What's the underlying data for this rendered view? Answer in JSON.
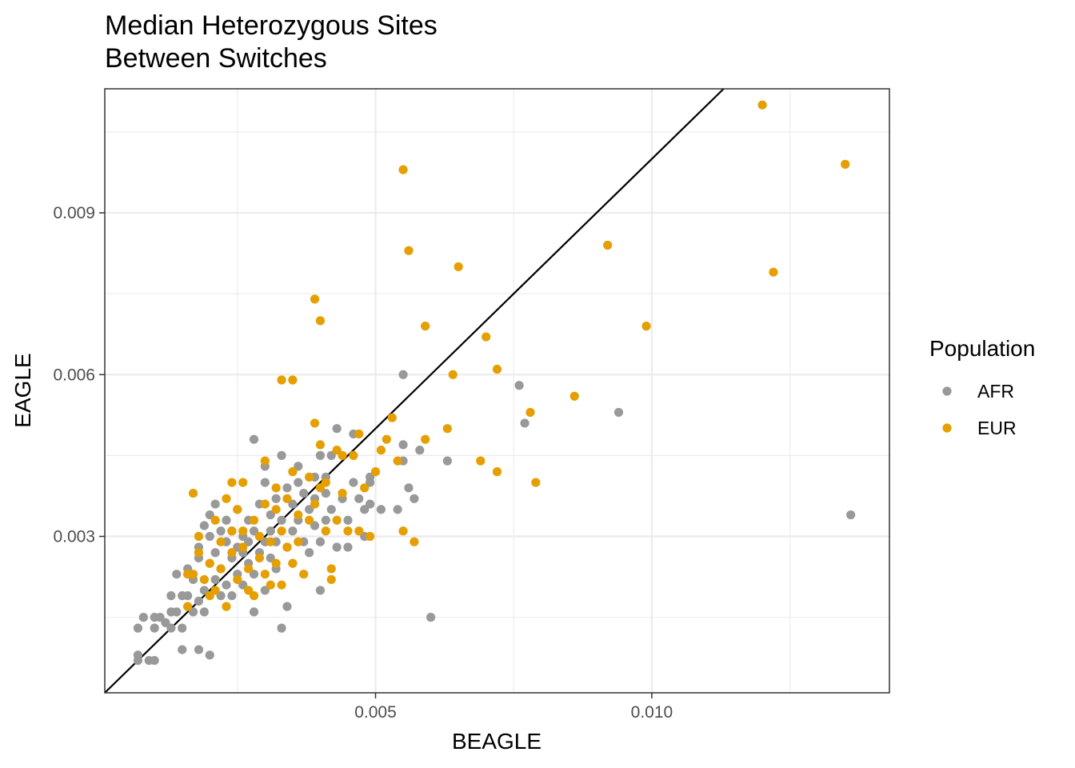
{
  "chart_data": {
    "type": "scatter",
    "title": "Median Heterozygous Sites",
    "subtitle": "Between Switches",
    "xlabel": "BEAGLE",
    "ylabel": "EAGLE",
    "xlim": [
      0.0001,
      0.0143
    ],
    "ylim": [
      0.0001,
      0.0113
    ],
    "x_ticks": [
      0.005,
      0.01
    ],
    "x_tick_labels": [
      "0.005",
      "0.010"
    ],
    "x_minor_ticks": [
      0.0025,
      0.0075,
      0.0125
    ],
    "y_ticks": [
      0.003,
      0.006,
      0.009
    ],
    "y_tick_labels": [
      "0.003",
      "0.006",
      "0.009"
    ],
    "y_minor_ticks": [
      0.0015,
      0.0045,
      0.0075,
      0.0105
    ],
    "grid": true,
    "reference_line": {
      "type": "identity",
      "slope": 1,
      "intercept": 0,
      "color": "#000000"
    },
    "legend": {
      "title": "Population",
      "placement": "right",
      "entries": [
        {
          "label": "AFR",
          "color": "#999999"
        },
        {
          "label": "EUR",
          "color": "#E69F00"
        }
      ]
    },
    "series": [
      {
        "name": "AFR",
        "color": "#999999",
        "points": [
          [
            0.0007,
            0.0007
          ],
          [
            0.0007,
            0.0008
          ],
          [
            0.0007,
            0.0013
          ],
          [
            0.0008,
            0.0015
          ],
          [
            0.0009,
            0.0007
          ],
          [
            0.001,
            0.0007
          ],
          [
            0.001,
            0.0013
          ],
          [
            0.001,
            0.0015
          ],
          [
            0.0011,
            0.0015
          ],
          [
            0.0012,
            0.0014
          ],
          [
            0.0013,
            0.0016
          ],
          [
            0.0013,
            0.0019
          ],
          [
            0.0013,
            0.0013
          ],
          [
            0.0014,
            0.0016
          ],
          [
            0.0014,
            0.0023
          ],
          [
            0.0015,
            0.0009
          ],
          [
            0.0015,
            0.0013
          ],
          [
            0.0015,
            0.0019
          ],
          [
            0.0016,
            0.0019
          ],
          [
            0.0016,
            0.0024
          ],
          [
            0.0017,
            0.0016
          ],
          [
            0.0017,
            0.0022
          ],
          [
            0.0018,
            0.0009
          ],
          [
            0.0018,
            0.0018
          ],
          [
            0.0018,
            0.0026
          ],
          [
            0.0018,
            0.0028
          ],
          [
            0.0019,
            0.0032
          ],
          [
            0.0019,
            0.002
          ],
          [
            0.0019,
            0.0016
          ],
          [
            0.002,
            0.0008
          ],
          [
            0.002,
            0.0025
          ],
          [
            0.002,
            0.003
          ],
          [
            0.002,
            0.0034
          ],
          [
            0.0021,
            0.0036
          ],
          [
            0.0021,
            0.0022
          ],
          [
            0.0021,
            0.0027
          ],
          [
            0.0022,
            0.0019
          ],
          [
            0.0022,
            0.0031
          ],
          [
            0.0022,
            0.0024
          ],
          [
            0.0023,
            0.0029
          ],
          [
            0.0023,
            0.0021
          ],
          [
            0.0023,
            0.0033
          ],
          [
            0.0024,
            0.0026
          ],
          [
            0.0024,
            0.0031
          ],
          [
            0.0024,
            0.0019
          ],
          [
            0.0025,
            0.0028
          ],
          [
            0.0025,
            0.0023
          ],
          [
            0.0025,
            0.0035
          ],
          [
            0.0026,
            0.0027
          ],
          [
            0.0026,
            0.003
          ],
          [
            0.0026,
            0.0021
          ],
          [
            0.0027,
            0.0033
          ],
          [
            0.0027,
            0.0025
          ],
          [
            0.0027,
            0.0029
          ],
          [
            0.0028,
            0.0016
          ],
          [
            0.0028,
            0.0048
          ],
          [
            0.0028,
            0.0031
          ],
          [
            0.0028,
            0.0023
          ],
          [
            0.0029,
            0.0036
          ],
          [
            0.0029,
            0.0027
          ],
          [
            0.003,
            0.004
          ],
          [
            0.003,
            0.0043
          ],
          [
            0.003,
            0.0029
          ],
          [
            0.003,
            0.002
          ],
          [
            0.0031,
            0.0034
          ],
          [
            0.0031,
            0.0026
          ],
          [
            0.0031,
            0.0031
          ],
          [
            0.0032,
            0.0037
          ],
          [
            0.0032,
            0.0024
          ],
          [
            0.0032,
            0.0029
          ],
          [
            0.0033,
            0.0045
          ],
          [
            0.0033,
            0.0013
          ],
          [
            0.0033,
            0.0033
          ],
          [
            0.0034,
            0.0039
          ],
          [
            0.0034,
            0.0017
          ],
          [
            0.0034,
            0.0028
          ],
          [
            0.0035,
            0.0036
          ],
          [
            0.0035,
            0.0031
          ],
          [
            0.0035,
            0.0025
          ],
          [
            0.0036,
            0.0043
          ],
          [
            0.0036,
            0.004
          ],
          [
            0.0036,
            0.0033
          ],
          [
            0.0037,
            0.0038
          ],
          [
            0.0037,
            0.0029
          ],
          [
            0.0038,
            0.0035
          ],
          [
            0.0038,
            0.0027
          ],
          [
            0.0039,
            0.0041
          ],
          [
            0.0039,
            0.0037
          ],
          [
            0.0039,
            0.0032
          ],
          [
            0.004,
            0.0045
          ],
          [
            0.004,
            0.0029
          ],
          [
            0.004,
            0.002
          ],
          [
            0.0041,
            0.0041
          ],
          [
            0.0041,
            0.0038
          ],
          [
            0.0041,
            0.0033
          ],
          [
            0.0042,
            0.0045
          ],
          [
            0.0042,
            0.0035
          ],
          [
            0.0043,
            0.005
          ],
          [
            0.0043,
            0.0028
          ],
          [
            0.0044,
            0.0037
          ],
          [
            0.0045,
            0.0033
          ],
          [
            0.0045,
            0.0028
          ],
          [
            0.0046,
            0.0049
          ],
          [
            0.0046,
            0.004
          ],
          [
            0.0047,
            0.0037
          ],
          [
            0.0048,
            0.0035
          ],
          [
            0.0048,
            0.003
          ],
          [
            0.0049,
            0.0041
          ],
          [
            0.0049,
            0.004
          ],
          [
            0.0049,
            0.0036
          ],
          [
            0.0051,
            0.0035
          ],
          [
            0.0054,
            0.0035
          ],
          [
            0.0055,
            0.0047
          ],
          [
            0.0055,
            0.006
          ],
          [
            0.0055,
            0.0044
          ],
          [
            0.0056,
            0.0039
          ],
          [
            0.0057,
            0.0037
          ],
          [
            0.0058,
            0.0046
          ],
          [
            0.006,
            0.0015
          ],
          [
            0.0063,
            0.0044
          ],
          [
            0.0076,
            0.0058
          ],
          [
            0.0077,
            0.0051
          ],
          [
            0.0094,
            0.0053
          ],
          [
            0.0136,
            0.0034
          ]
        ]
      },
      {
        "name": "EUR",
        "color": "#E69F00",
        "points": [
          [
            0.0016,
            0.0017
          ],
          [
            0.0016,
            0.0023
          ],
          [
            0.0017,
            0.0023
          ],
          [
            0.0017,
            0.0038
          ],
          [
            0.0018,
            0.003
          ],
          [
            0.0018,
            0.0027
          ],
          [
            0.0019,
            0.0022
          ],
          [
            0.002,
            0.0025
          ],
          [
            0.002,
            0.0019
          ],
          [
            0.0021,
            0.0033
          ],
          [
            0.0021,
            0.002
          ],
          [
            0.0022,
            0.0029
          ],
          [
            0.0022,
            0.0024
          ],
          [
            0.0023,
            0.0017
          ],
          [
            0.0023,
            0.0037
          ],
          [
            0.0024,
            0.0031
          ],
          [
            0.0024,
            0.004
          ],
          [
            0.0024,
            0.0027
          ],
          [
            0.0025,
            0.0022
          ],
          [
            0.0025,
            0.0035
          ],
          [
            0.0026,
            0.004
          ],
          [
            0.0026,
            0.0031
          ],
          [
            0.0026,
            0.0028
          ],
          [
            0.0027,
            0.0024
          ],
          [
            0.0027,
            0.002
          ],
          [
            0.0028,
            0.0033
          ],
          [
            0.0028,
            0.0019
          ],
          [
            0.0029,
            0.003
          ],
          [
            0.0029,
            0.0026
          ],
          [
            0.003,
            0.0044
          ],
          [
            0.003,
            0.0036
          ],
          [
            0.003,
            0.0023
          ],
          [
            0.0031,
            0.0029
          ],
          [
            0.0031,
            0.0021
          ],
          [
            0.0032,
            0.0035
          ],
          [
            0.0032,
            0.0039
          ],
          [
            0.0032,
            0.0025
          ],
          [
            0.0033,
            0.0059
          ],
          [
            0.0033,
            0.0031
          ],
          [
            0.0033,
            0.0021
          ],
          [
            0.0034,
            0.0037
          ],
          [
            0.0034,
            0.0028
          ],
          [
            0.0035,
            0.0059
          ],
          [
            0.0035,
            0.0042
          ],
          [
            0.0035,
            0.0025
          ],
          [
            0.0036,
            0.0034
          ],
          [
            0.0036,
            0.0029
          ],
          [
            0.0037,
            0.0023
          ],
          [
            0.0038,
            0.0041
          ],
          [
            0.0038,
            0.0033
          ],
          [
            0.0039,
            0.0074
          ],
          [
            0.0039,
            0.0051
          ],
          [
            0.0039,
            0.0036
          ],
          [
            0.004,
            0.0047
          ],
          [
            0.004,
            0.0039
          ],
          [
            0.004,
            0.007
          ],
          [
            0.0041,
            0.004
          ],
          [
            0.0041,
            0.0031
          ],
          [
            0.0042,
            0.0022
          ],
          [
            0.0042,
            0.0024
          ],
          [
            0.0043,
            0.0046
          ],
          [
            0.0043,
            0.0033
          ],
          [
            0.0044,
            0.0045
          ],
          [
            0.0044,
            0.0038
          ],
          [
            0.0045,
            0.0031
          ],
          [
            0.0046,
            0.0045
          ],
          [
            0.0047,
            0.0049
          ],
          [
            0.0047,
            0.0031
          ],
          [
            0.0048,
            0.0039
          ],
          [
            0.0049,
            0.003
          ],
          [
            0.005,
            0.0042
          ],
          [
            0.0051,
            0.0046
          ],
          [
            0.0052,
            0.0048
          ],
          [
            0.0053,
            0.0052
          ],
          [
            0.0054,
            0.0044
          ],
          [
            0.0055,
            0.0031
          ],
          [
            0.0055,
            0.0098
          ],
          [
            0.0056,
            0.0083
          ],
          [
            0.0057,
            0.0029
          ],
          [
            0.0059,
            0.0069
          ],
          [
            0.0059,
            0.0048
          ],
          [
            0.0063,
            0.005
          ],
          [
            0.0064,
            0.006
          ],
          [
            0.0065,
            0.008
          ],
          [
            0.0069,
            0.0044
          ],
          [
            0.007,
            0.0067
          ],
          [
            0.0072,
            0.0061
          ],
          [
            0.0072,
            0.0042
          ],
          [
            0.0078,
            0.0053
          ],
          [
            0.0079,
            0.004
          ],
          [
            0.0086,
            0.0056
          ],
          [
            0.0092,
            0.0084
          ],
          [
            0.0099,
            0.0069
          ],
          [
            0.012,
            0.011
          ],
          [
            0.0122,
            0.0079
          ],
          [
            0.0135,
            0.0099
          ]
        ]
      }
    ]
  }
}
